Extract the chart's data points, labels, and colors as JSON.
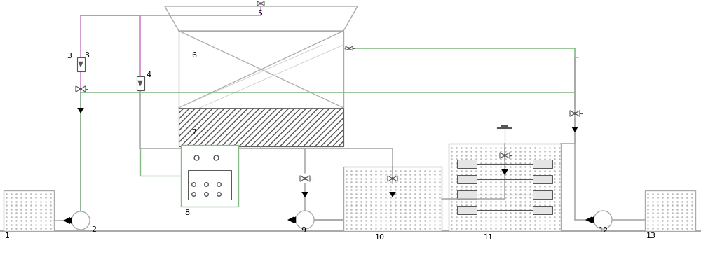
{
  "bg": "#ffffff",
  "lc": "#aaaaaa",
  "pc": "#cc88cc",
  "gc": "#88bb88",
  "dc": "#555555",
  "figsize": [
    10.0,
    3.77
  ],
  "dpi": 100
}
